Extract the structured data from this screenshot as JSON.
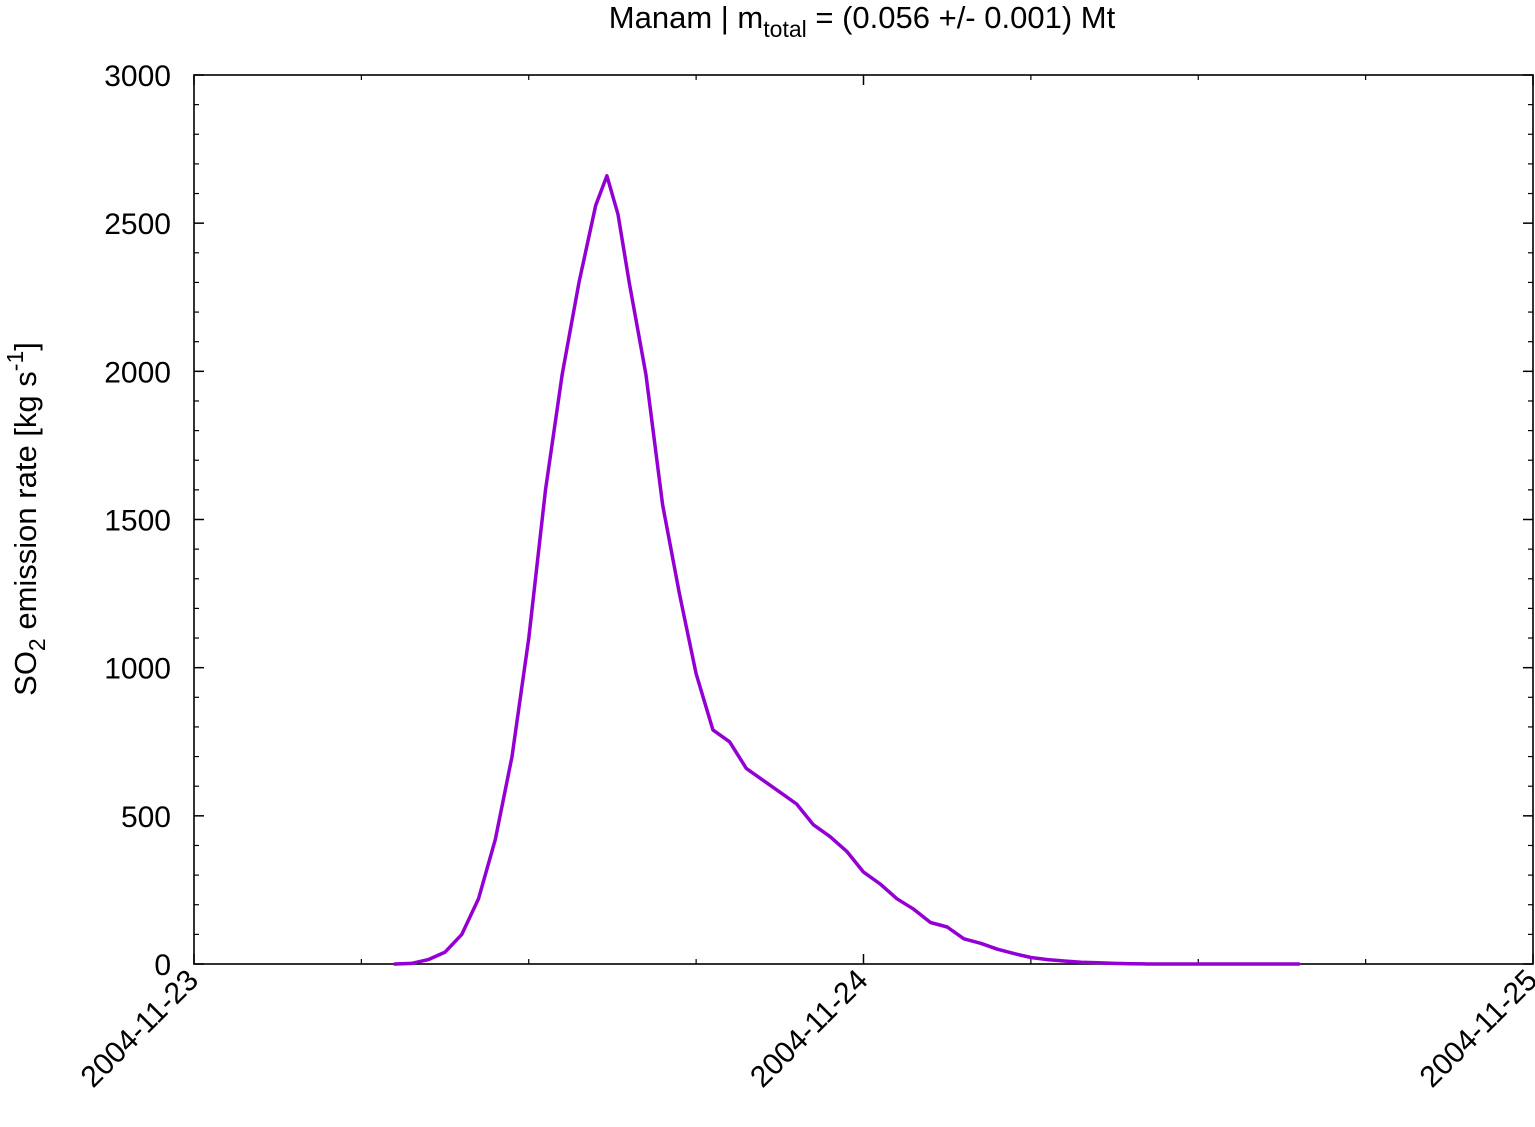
{
  "chart_data": {
    "type": "line",
    "title": {
      "prefix": "Manam | m",
      "subscript": "total",
      "suffix": " = (0.056 +/- 0.001) Mt"
    },
    "ylabel": {
      "prefix": "SO",
      "subscript": "2",
      "middle": " emission rate [kg s",
      "superscript": "-1",
      "suffix": "]"
    },
    "xlabel": "",
    "xlim": [
      "2004-11-23 00:00",
      "2004-11-25 00:00"
    ],
    "ylim": [
      0,
      3000
    ],
    "x_tick_labels": [
      "2004-11-23",
      "2004-11-24",
      "2004-11-25"
    ],
    "y_tick_labels": [
      "0",
      "500",
      "1000",
      "1500",
      "2000",
      "2500",
      "3000"
    ],
    "grid": false,
    "line_color": "#9400d3",
    "series": [
      {
        "x": [
          "2004-11-23 07:12",
          "2004-11-23 07:48",
          "2004-11-23 08:24",
          "2004-11-23 09:00",
          "2004-11-23 09:36",
          "2004-11-23 10:12",
          "2004-11-23 10:48",
          "2004-11-23 11:24",
          "2004-11-23 12:00",
          "2004-11-23 12:36",
          "2004-11-23 13:12",
          "2004-11-23 13:48",
          "2004-11-23 14:24",
          "2004-11-23 14:48",
          "2004-11-23 15:12",
          "2004-11-23 15:36",
          "2004-11-23 16:12",
          "2004-11-23 16:48",
          "2004-11-23 17:24",
          "2004-11-23 18:00",
          "2004-11-23 18:36",
          "2004-11-23 19:12",
          "2004-11-23 19:48",
          "2004-11-23 20:24",
          "2004-11-23 21:00",
          "2004-11-23 21:36",
          "2004-11-23 22:12",
          "2004-11-23 22:48",
          "2004-11-23 23:24",
          "2004-11-24 00:00",
          "2004-11-24 00:36",
          "2004-11-24 01:12",
          "2004-11-24 01:48",
          "2004-11-24 02:24",
          "2004-11-24 03:00",
          "2004-11-24 03:36",
          "2004-11-24 04:12",
          "2004-11-24 04:48",
          "2004-11-24 05:24",
          "2004-11-24 06:00",
          "2004-11-24 06:36",
          "2004-11-24 07:12",
          "2004-11-24 07:48"
        ],
        "y": [
          0,
          2,
          15,
          40,
          100,
          220,
          420,
          700,
          1100,
          1600,
          1990,
          2300,
          2560,
          2660,
          2530,
          2300,
          1990,
          1550,
          1250,
          980,
          790,
          750,
          660,
          620,
          580,
          540,
          470,
          430,
          380,
          310,
          270,
          220,
          185,
          140,
          125,
          85,
          70,
          50,
          35,
          22,
          15,
          10,
          6
        ]
      },
      {
        "x": [
          "2004-11-24 08:24",
          "2004-11-24 09:00",
          "2004-11-24 09:36",
          "2004-11-24 10:12",
          "2004-11-24 10:48",
          "2004-11-24 11:24",
          "2004-11-24 12:00",
          "2004-11-24 12:36",
          "2004-11-24 13:12",
          "2004-11-24 13:48",
          "2004-11-24 14:24",
          "2004-11-24 15:00",
          "2004-11-24 15:36"
        ],
        "y": [
          4,
          2,
          1,
          0,
          0,
          0,
          0,
          0,
          0,
          0,
          0,
          0,
          0
        ]
      }
    ]
  }
}
